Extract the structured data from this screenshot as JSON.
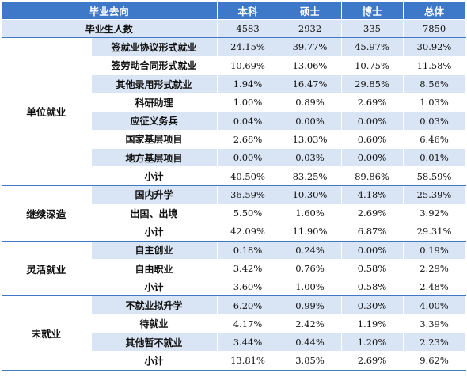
{
  "header": {
    "col_category": "毕业去向",
    "col_bachelor": "本科",
    "col_master": "硕士",
    "col_doctor": "博士",
    "col_total": "总体"
  },
  "graduates": {
    "label": "毕业生人数",
    "bachelor": "4583",
    "master": "2932",
    "doctor": "335",
    "total": "7850"
  },
  "groups": [
    {
      "name": "单位就业",
      "rows": [
        {
          "label": "签就业协议形式就业",
          "bachelor": "24.15%",
          "master": "39.77%",
          "doctor": "45.97%",
          "total": "30.92%"
        },
        {
          "label": "签劳动合同形式就业",
          "bachelor": "10.69%",
          "master": "13.06%",
          "doctor": "10.75%",
          "total": "11.58%"
        },
        {
          "label": "其他录用形式就业",
          "bachelor": "1.94%",
          "master": "16.47%",
          "doctor": "29.85%",
          "total": "8.56%"
        },
        {
          "label": "科研助理",
          "bachelor": "1.00%",
          "master": "0.89%",
          "doctor": "2.69%",
          "total": "1.03%"
        },
        {
          "label": "应征义务兵",
          "bachelor": "0.04%",
          "master": "0.00%",
          "doctor": "0.00%",
          "total": "0.03%"
        },
        {
          "label": "国家基层项目",
          "bachelor": "2.68%",
          "master": "13.03%",
          "doctor": "0.60%",
          "total": "6.46%"
        },
        {
          "label": "地方基层项目",
          "bachelor": "0.00%",
          "master": "0.03%",
          "doctor": "0.00%",
          "total": "0.01%"
        },
        {
          "label": "小计",
          "bachelor": "40.50%",
          "master": "83.25%",
          "doctor": "89.86%",
          "total": "58.59%"
        }
      ]
    },
    {
      "name": "继续深造",
      "rows": [
        {
          "label": "国内升学",
          "bachelor": "36.59%",
          "master": "10.30%",
          "doctor": "4.18%",
          "total": "25.39%"
        },
        {
          "label": "出国、出境",
          "bachelor": "5.50%",
          "master": "1.60%",
          "doctor": "2.69%",
          "total": "3.92%"
        },
        {
          "label": "小计",
          "bachelor": "42.09%",
          "master": "11.90%",
          "doctor": "6.87%",
          "total": "29.31%"
        }
      ]
    },
    {
      "name": "灵活就业",
      "rows": [
        {
          "label": "自主创业",
          "bachelor": "0.18%",
          "master": "0.24%",
          "doctor": "0.00%",
          "total": "0.19%"
        },
        {
          "label": "自由职业",
          "bachelor": "3.42%",
          "master": "0.76%",
          "doctor": "0.58%",
          "total": "2.29%"
        },
        {
          "label": "小计",
          "bachelor": "3.60%",
          "master": "1.00%",
          "doctor": "0.58%",
          "total": "2.48%"
        }
      ]
    },
    {
      "name": "未就业",
      "rows": [
        {
          "label": "不就业拟升学",
          "bachelor": "6.20%",
          "master": "0.99%",
          "doctor": "0.30%",
          "total": "4.00%"
        },
        {
          "label": "待就业",
          "bachelor": "4.17%",
          "master": "2.42%",
          "doctor": "1.19%",
          "total": "3.39%"
        },
        {
          "label": "其他暂不就业",
          "bachelor": "3.44%",
          "master": "0.44%",
          "doctor": "1.20%",
          "total": "2.23%"
        },
        {
          "label": "小计",
          "bachelor": "13.81%",
          "master": "3.85%",
          "doctor": "2.69%",
          "total": "9.62%"
        }
      ]
    }
  ],
  "colors": {
    "header_bg": "#3e78c9",
    "band_bg": "#d9e4f4",
    "plain_bg": "#ffffff"
  }
}
